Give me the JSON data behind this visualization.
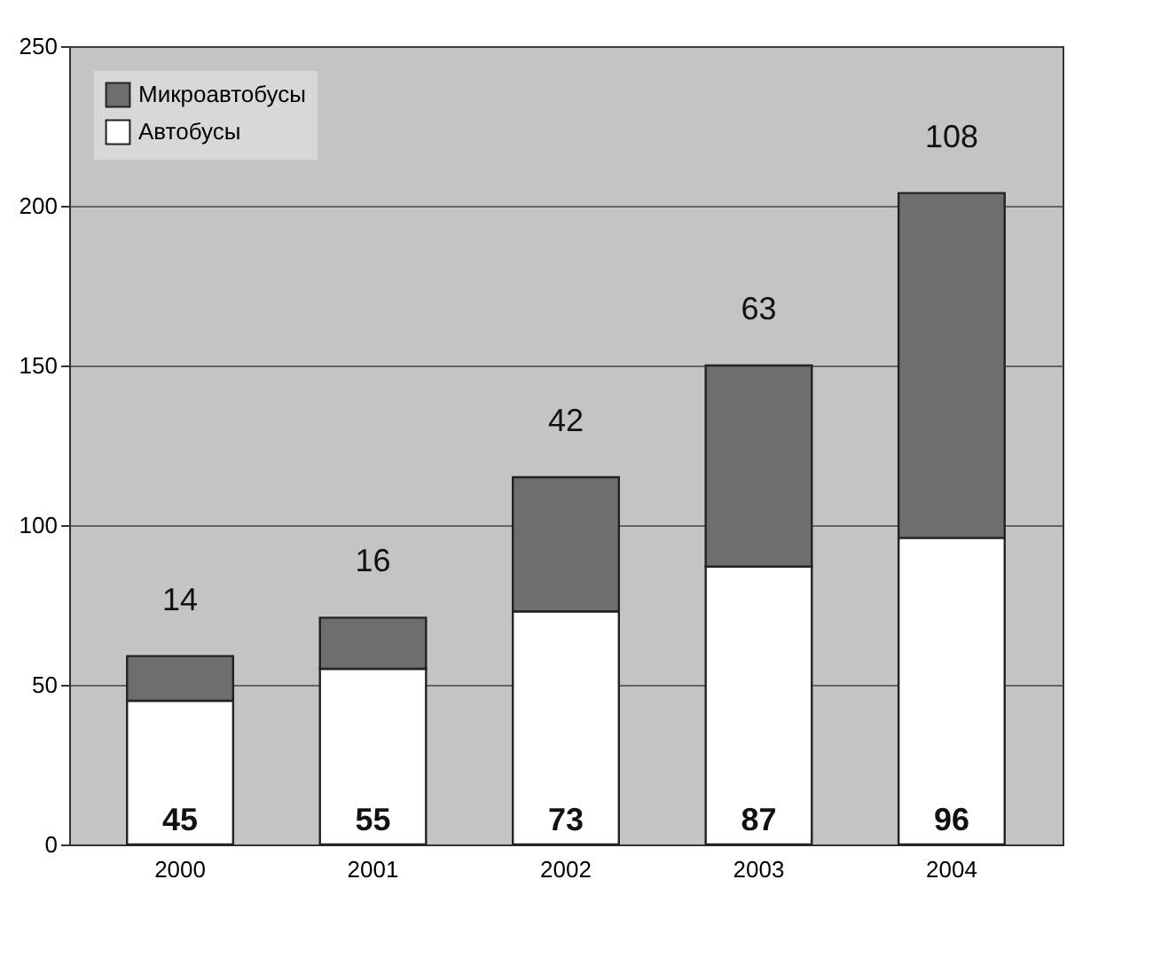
{
  "chart_data": {
    "type": "bar",
    "stacked": true,
    "categories": [
      "2000",
      "2001",
      "2002",
      "2003",
      "2004"
    ],
    "series": [
      {
        "name": "Автобусы",
        "color": "#ffffff",
        "values": [
          45,
          55,
          73,
          87,
          96
        ]
      },
      {
        "name": "Микроавтобусы",
        "color": "#6e6e6e",
        "values": [
          14,
          16,
          42,
          63,
          108
        ]
      }
    ],
    "ylim": [
      0,
      250
    ],
    "yticks": [
      0,
      50,
      100,
      150,
      200,
      250
    ],
    "grid": "y",
    "legend": "top left",
    "data_labels": true
  }
}
